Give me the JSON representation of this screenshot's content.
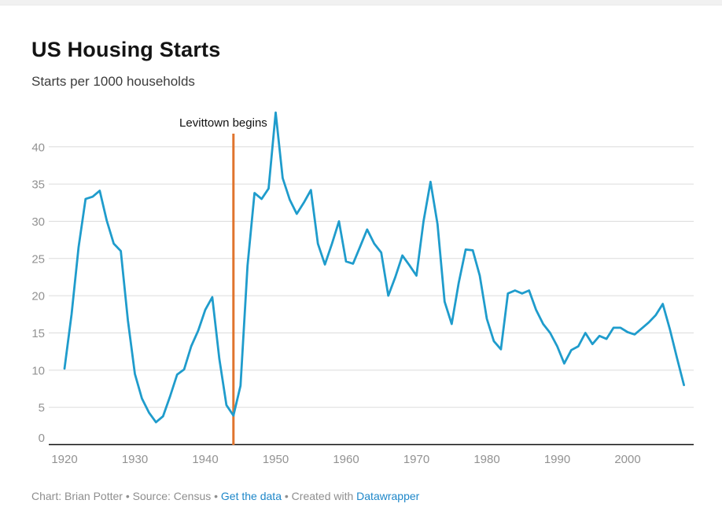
{
  "header": {
    "title": "US Housing Starts",
    "subtitle": "Starts per 1000 households"
  },
  "annotation": {
    "label": "Levittown begins",
    "year": 1944
  },
  "footer": {
    "chart_credit": "Chart: Brian Potter",
    "dot1": " • ",
    "source": "Source: Census",
    "dot2": " • ",
    "get_data_link": "Get the data",
    "dot3": " • ",
    "created_with": "Created with ",
    "datawrapper_link": "Datawrapper"
  },
  "colors": {
    "line": "#1f9ccc",
    "marker_line": "#e0742e",
    "gridline": "#dcdcdc",
    "axis_baseline": "#111111",
    "tick_label": "#929292",
    "link": "#1e87c9"
  },
  "chart_data": {
    "type": "line",
    "title": "US Housing Starts",
    "subtitle": "Starts per 1000 households",
    "xlabel": "",
    "ylabel": "Starts per 1000 households",
    "grid": true,
    "legend_position": "none",
    "ylim": [
      0,
      45.5
    ],
    "xlim": [
      1919.5,
      2009.5
    ],
    "yticks": [
      0,
      5,
      10,
      15,
      20,
      25,
      30,
      35,
      40
    ],
    "xticks": [
      1920,
      1930,
      1940,
      1950,
      1960,
      1970,
      1980,
      1990,
      2000
    ],
    "annotation_line": {
      "x": 1944,
      "label": "Levittown begins"
    },
    "x": [
      1920,
      1921,
      1922,
      1923,
      1924,
      1925,
      1926,
      1927,
      1928,
      1929,
      1930,
      1931,
      1932,
      1933,
      1934,
      1935,
      1936,
      1937,
      1938,
      1939,
      1940,
      1941,
      1942,
      1943,
      1944,
      1945,
      1946,
      1947,
      1948,
      1949,
      1950,
      1951,
      1952,
      1953,
      1954,
      1955,
      1956,
      1957,
      1958,
      1959,
      1960,
      1961,
      1962,
      1963,
      1964,
      1965,
      1966,
      1967,
      1968,
      1969,
      1970,
      1971,
      1972,
      1973,
      1974,
      1975,
      1976,
      1977,
      1978,
      1979,
      1980,
      1981,
      1982,
      1983,
      1984,
      1985,
      1986,
      1987,
      1988,
      1989,
      1990,
      1991,
      1992,
      1993,
      1994,
      1995,
      1996,
      1997,
      1998,
      1999,
      2000,
      2001,
      2002,
      2003,
      2004,
      2005,
      2006,
      2007,
      2008
    ],
    "values": [
      10.2,
      17.5,
      26.5,
      33.0,
      33.3,
      34.1,
      30.1,
      27.0,
      26.0,
      16.7,
      9.5,
      6.2,
      4.3,
      3.0,
      3.8,
      6.5,
      9.4,
      10.1,
      13.2,
      15.3,
      18.1,
      19.8,
      11.5,
      5.3,
      3.9,
      7.9,
      24.0,
      33.8,
      33.0,
      34.4,
      44.6,
      35.8,
      32.9,
      31.0,
      32.5,
      34.2,
      27.0,
      24.2,
      27.0,
      30.0,
      24.6,
      24.3,
      26.6,
      28.9,
      27.0,
      25.8,
      20.0,
      22.5,
      25.4,
      24.1,
      22.7,
      30.0,
      35.3,
      29.6,
      19.2,
      16.2,
      21.7,
      26.2,
      26.1,
      22.7,
      16.9,
      13.9,
      12.8,
      20.3,
      20.7,
      20.3,
      20.7,
      18.1,
      16.2,
      15.0,
      13.2,
      10.9,
      12.7,
      13.2,
      15.0,
      13.5,
      14.6,
      14.2,
      15.7,
      15.7,
      15.1,
      14.8,
      15.6,
      16.4,
      17.4,
      18.9,
      15.5,
      11.7,
      8.0
    ]
  }
}
